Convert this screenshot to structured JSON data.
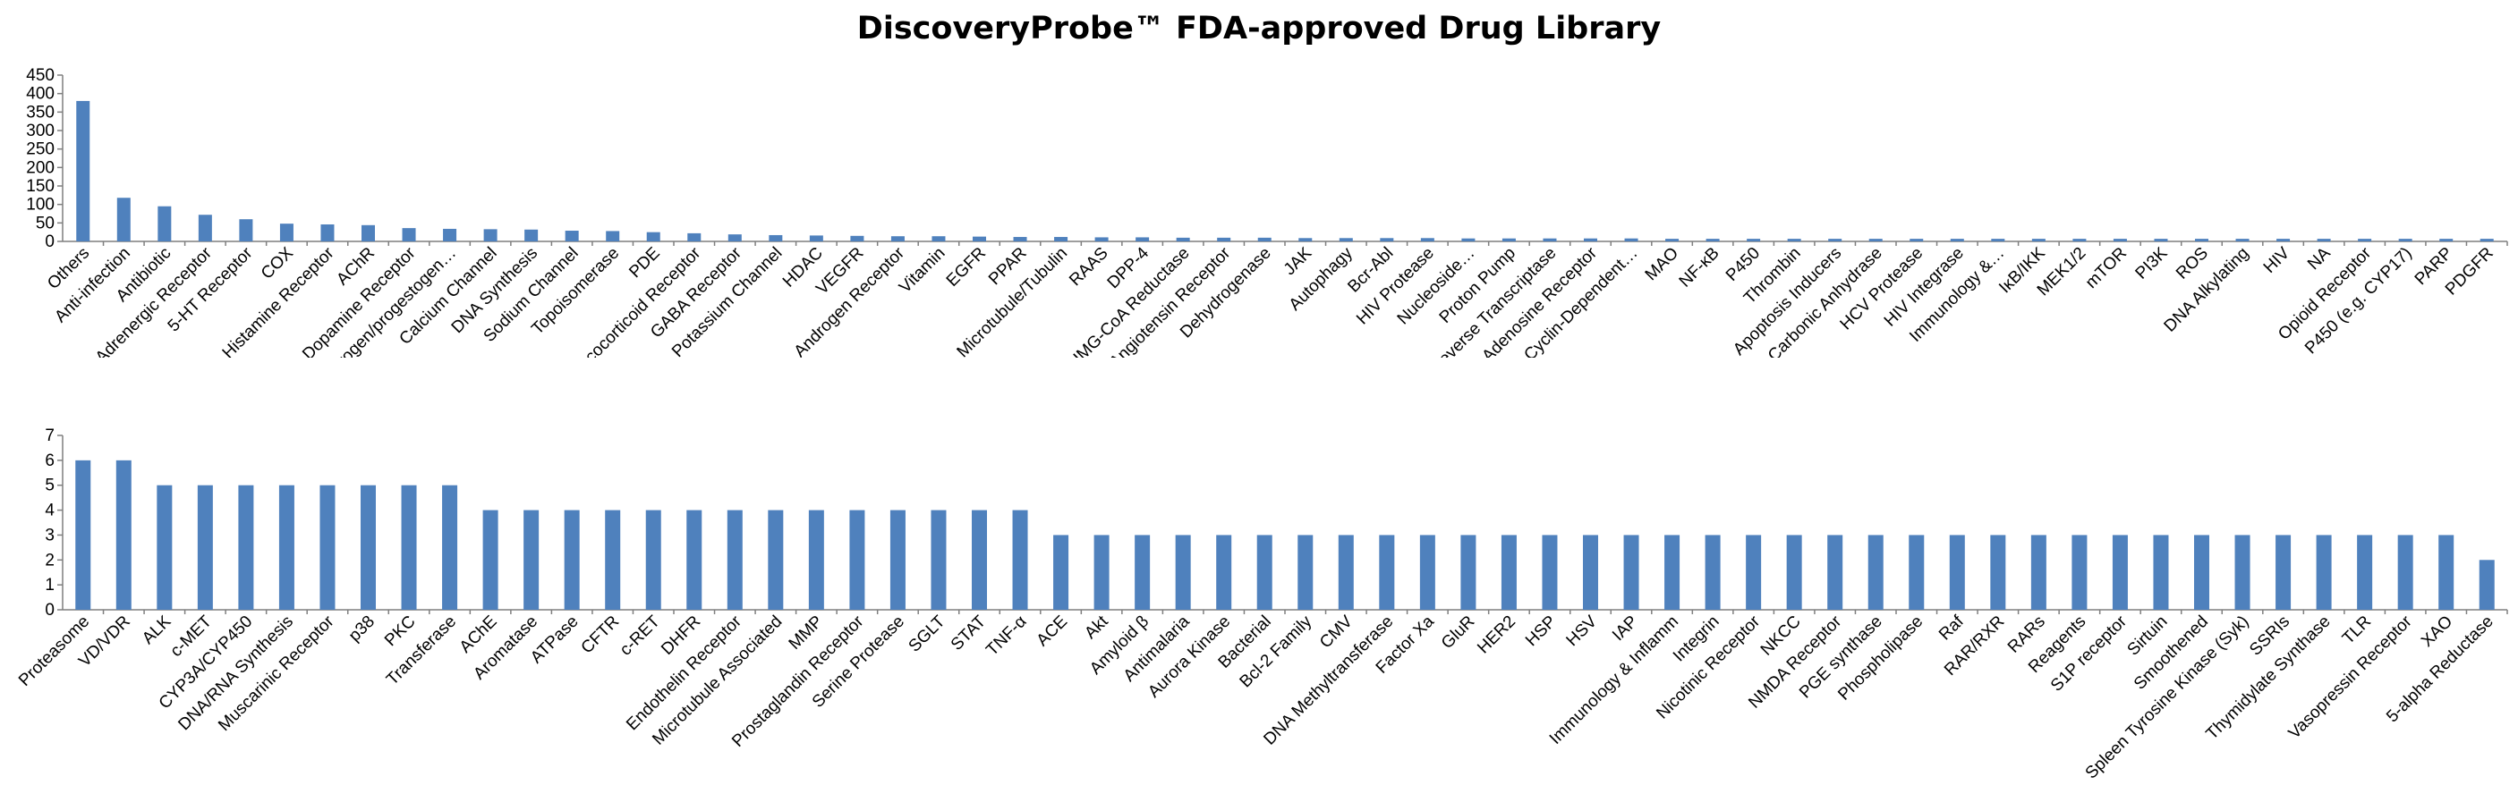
{
  "page": {
    "title": "DiscoveryProbe™ FDA-approved Drug Library"
  },
  "chart_data": [
    {
      "type": "bar",
      "title": "DiscoveryProbe™ FDA-approved Drug Library",
      "xlabel": "",
      "ylabel": "",
      "ylim": [
        0,
        450
      ],
      "yticks": [
        "0",
        "50",
        "100",
        "150",
        "200",
        "250",
        "300",
        "350",
        "400",
        "450"
      ],
      "grid": false,
      "bar_color": "#4f81bd",
      "categories": [
        "Others",
        "Anti-infection",
        "Antibiotic",
        "Adrenergic Receptor",
        "5-HT Receptor",
        "COX",
        "Histamine Receptor",
        "AChR",
        "Dopamine Receptor",
        "Estrogen/progestogen…",
        "Calcium Channel",
        "DNA Synthesis",
        "Sodium Channel",
        "Topoisomerase",
        "PDE",
        "Glucocorticoid Receptor",
        "GABA Receptor",
        "Potassium Channel",
        "HDAC",
        "VEGFR",
        "Androgen Receptor",
        "Vitamin",
        "EGFR",
        "PPAR",
        "Microtubule/Tubulin",
        "RAAS",
        "DPP-4",
        "HMG-CoA Reductase",
        "Angiotensin Receptor",
        "Dehydrogenase",
        "JAK",
        "Autophagy",
        "Bcr-Abl",
        "HIV Protease",
        "Nucleoside…",
        "Proton Pump",
        "Reverse Transcriptase",
        "Adenosine Receptor",
        "Cyclin-Dependent…",
        "MAO",
        "NF-κB",
        "P450",
        "Thrombin",
        "Apoptosis Inducers",
        "Carbonic Anhydrase",
        "HCV Protease",
        "HIV Integrase",
        "Immunology &…",
        "IκB/IKK",
        "MEK1/2",
        "mTOR",
        "PI3K",
        "ROS",
        "DNA Alkylating",
        "HIV",
        "NA",
        "Opioid Receptor",
        "P450 (e.g. CYP17)",
        "PARP",
        "PDGFR"
      ],
      "values": [
        380,
        118,
        95,
        72,
        60,
        48,
        46,
        44,
        36,
        34,
        33,
        32,
        29,
        28,
        25,
        22,
        19,
        17,
        16,
        15,
        14,
        14,
        13,
        12,
        12,
        11,
        11,
        10,
        10,
        10,
        9,
        9,
        9,
        9,
        8,
        8,
        8,
        8,
        8,
        7,
        7,
        7,
        7,
        7,
        7,
        7,
        7,
        7,
        7,
        7,
        7,
        7,
        7,
        7,
        7,
        7,
        7,
        7,
        7,
        7
      ]
    },
    {
      "type": "bar",
      "xlabel": "",
      "ylabel": "",
      "ylim": [
        0,
        7
      ],
      "yticks": [
        "0",
        "1",
        "2",
        "3",
        "4",
        "5",
        "6",
        "7"
      ],
      "grid": false,
      "bar_color": "#4f81bd",
      "categories": [
        "Proteasome",
        "VD/VDR",
        "ALK",
        "c-MET",
        "CYP3A/CYP450",
        "DNA/RNA Synthesis",
        "Muscarinic Receptor",
        "p38",
        "PKC",
        "Transferase",
        "AChE",
        "Aromatase",
        "ATPase",
        "CFTR",
        "c-RET",
        "DHFR",
        "Endothelin Receptor",
        "Microtubule Associated",
        "MMP",
        "Prostaglandin Receptor",
        "Serine Protease",
        "SGLT",
        "STAT",
        "TNF-α",
        "ACE",
        "Akt",
        "Amyloid β",
        "Antimalaria",
        "Aurora Kinase",
        "Bacterial",
        "Bcl-2 Family",
        "CMV",
        "DNA Methyltransferase",
        "Factor Xa",
        "GluR",
        "HER2",
        "HSP",
        "HSV",
        "IAP",
        "Immunology & Inflamm",
        "Integrin",
        "Nicotinic Receptor",
        "NKCC",
        "NMDA Receptor",
        "PGE synthase",
        "Phospholipase",
        "Raf",
        "RAR/RXR",
        "RARs",
        "Reagents",
        "S1P receptor",
        "Sirtuin",
        "Smoothened",
        "Spleen Tyrosine Kinase (Syk)",
        "SSRIs",
        "Thymidylate Synthase",
        "TLR",
        "Vasopressin Receptor",
        "XAO",
        "5-alpha Reductase"
      ],
      "values": [
        6,
        6,
        5,
        5,
        5,
        5,
        5,
        5,
        5,
        5,
        4,
        4,
        4,
        4,
        4,
        4,
        4,
        4,
        4,
        4,
        4,
        4,
        4,
        4,
        3,
        3,
        3,
        3,
        3,
        3,
        3,
        3,
        3,
        3,
        3,
        3,
        3,
        3,
        3,
        3,
        3,
        3,
        3,
        3,
        3,
        3,
        3,
        3,
        3,
        3,
        3,
        3,
        3,
        3,
        3,
        3,
        3,
        3,
        3,
        2
      ]
    }
  ]
}
